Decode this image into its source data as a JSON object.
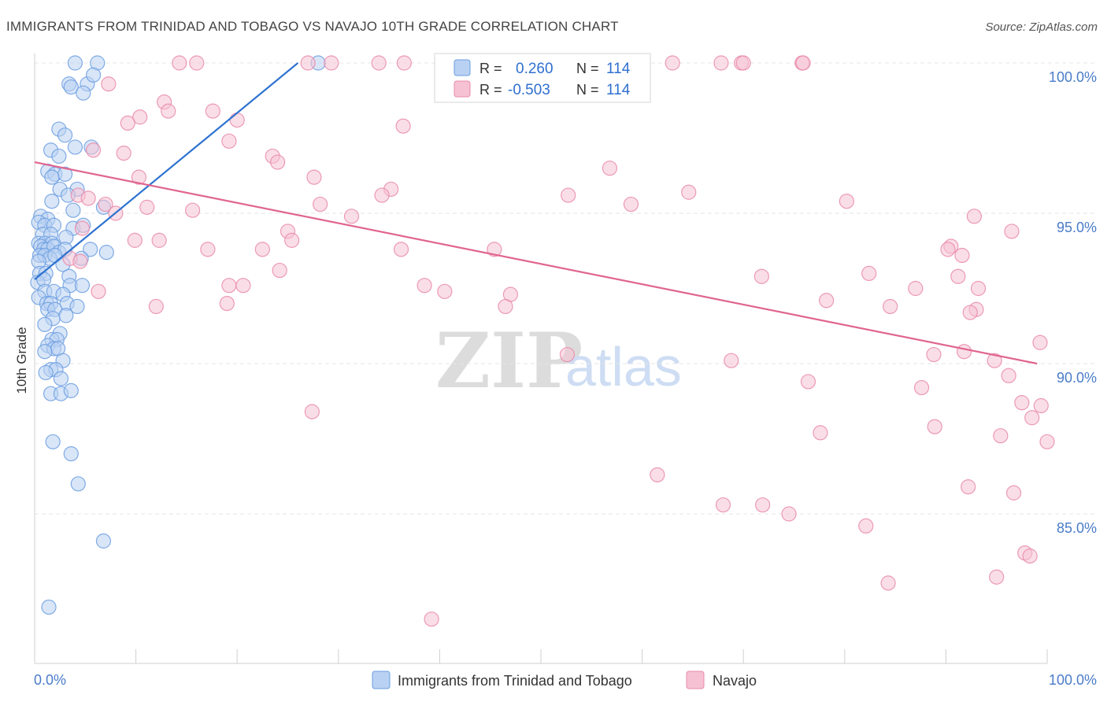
{
  "chart_data": {
    "type": "scatter",
    "title": "IMMIGRANTS FROM TRINIDAD AND TOBAGO VS NAVAJO 10TH GRADE CORRELATION CHART",
    "source": "Source: ZipAtlas.com",
    "ylabel": "10th Grade",
    "xlabel": "",
    "xlim": [
      0,
      100
    ],
    "ylim": [
      80.5,
      100.5
    ],
    "x_tick_labels": {
      "left": "0.0%",
      "right": "100.0%"
    },
    "y_ticks": [
      {
        "value": 100,
        "label": "100.0%"
      },
      {
        "value": 95,
        "label": "95.0%"
      },
      {
        "value": 90,
        "label": "90.0%"
      },
      {
        "value": 85,
        "label": "85.0%"
      }
    ],
    "grid": true,
    "watermark": {
      "zip": "ZIP",
      "atlas": "atlas"
    },
    "legend_top": {
      "placement": "top-center",
      "rows": [
        {
          "r_label": "R =",
          "r_value": "0.260",
          "n_label": "N =",
          "n_value": "114"
        },
        {
          "r_label": "R =",
          "r_value": "-0.503",
          "n_label": "N =",
          "n_value": "114"
        }
      ]
    },
    "series": [
      {
        "name": "Immigrants from Trinidad and Tobago",
        "color": "#6b9ee0",
        "fill": "#b9d1f3",
        "line_color": "#2e73d0",
        "trend": {
          "x": [
            0.0,
            26.0
          ],
          "y": [
            92.8,
            100.0
          ]
        },
        "points": [
          [
            4.0,
            100.0
          ],
          [
            6.2,
            100.0
          ],
          [
            28.0,
            100.0
          ],
          [
            5.2,
            99.3
          ],
          [
            5.8,
            99.6
          ],
          [
            3.4,
            99.3
          ],
          [
            3.6,
            99.2
          ],
          [
            4.8,
            99.0
          ],
          [
            2.4,
            97.8
          ],
          [
            3.0,
            97.6
          ],
          [
            4.0,
            97.2
          ],
          [
            1.6,
            97.1
          ],
          [
            2.4,
            96.9
          ],
          [
            5.6,
            97.2
          ],
          [
            1.3,
            96.4
          ],
          [
            2.0,
            96.3
          ],
          [
            3.0,
            96.3
          ],
          [
            1.7,
            96.2
          ],
          [
            2.5,
            95.8
          ],
          [
            4.2,
            95.8
          ],
          [
            1.7,
            95.4
          ],
          [
            3.3,
            95.6
          ],
          [
            3.8,
            95.1
          ],
          [
            6.8,
            95.2
          ],
          [
            0.6,
            94.9
          ],
          [
            1.3,
            94.8
          ],
          [
            0.4,
            94.7
          ],
          [
            1.0,
            94.6
          ],
          [
            1.9,
            94.6
          ],
          [
            3.8,
            94.5
          ],
          [
            4.8,
            94.6
          ],
          [
            0.8,
            94.3
          ],
          [
            1.6,
            94.3
          ],
          [
            3.1,
            94.2
          ],
          [
            0.4,
            94.0
          ],
          [
            1.0,
            94.0
          ],
          [
            1.7,
            94.0
          ],
          [
            0.6,
            93.9
          ],
          [
            0.9,
            93.8
          ],
          [
            1.3,
            93.8
          ],
          [
            1.9,
            93.9
          ],
          [
            2.4,
            93.7
          ],
          [
            3.0,
            93.8
          ],
          [
            5.5,
            93.8
          ],
          [
            7.1,
            93.7
          ],
          [
            0.5,
            93.6
          ],
          [
            1.0,
            93.6
          ],
          [
            1.5,
            93.5
          ],
          [
            2.0,
            93.6
          ],
          [
            0.4,
            93.4
          ],
          [
            2.8,
            93.3
          ],
          [
            4.6,
            93.5
          ],
          [
            0.5,
            93.0
          ],
          [
            1.1,
            93.0
          ],
          [
            3.4,
            92.9
          ],
          [
            0.3,
            92.7
          ],
          [
            0.9,
            92.8
          ],
          [
            3.5,
            92.6
          ],
          [
            4.7,
            92.6
          ],
          [
            1.0,
            92.4
          ],
          [
            1.9,
            92.4
          ],
          [
            0.4,
            92.2
          ],
          [
            2.8,
            92.3
          ],
          [
            1.2,
            92.0
          ],
          [
            1.6,
            92.0
          ],
          [
            3.2,
            92.0
          ],
          [
            4.2,
            91.9
          ],
          [
            1.3,
            91.8
          ],
          [
            2.0,
            91.8
          ],
          [
            3.1,
            91.6
          ],
          [
            1.8,
            91.5
          ],
          [
            1.0,
            91.3
          ],
          [
            2.5,
            91.0
          ],
          [
            1.7,
            90.8
          ],
          [
            2.2,
            90.8
          ],
          [
            1.3,
            90.6
          ],
          [
            1.9,
            90.5
          ],
          [
            2.3,
            90.5
          ],
          [
            1.0,
            90.4
          ],
          [
            2.8,
            90.1
          ],
          [
            1.6,
            89.8
          ],
          [
            2.1,
            89.8
          ],
          [
            1.1,
            89.7
          ],
          [
            2.6,
            89.5
          ],
          [
            1.6,
            89.0
          ],
          [
            2.6,
            89.0
          ],
          [
            3.6,
            89.1
          ],
          [
            1.8,
            87.4
          ],
          [
            3.6,
            87.0
          ],
          [
            4.3,
            86.0
          ],
          [
            6.8,
            84.1
          ],
          [
            1.4,
            81.9
          ]
        ]
      },
      {
        "name": "Navajo",
        "color": "#e98aaa",
        "fill": "#f6c2d3",
        "line_color": "#e0658f",
        "trend": {
          "x": [
            0.0,
            99.0
          ],
          "y": [
            96.7,
            90.0
          ]
        },
        "points": [
          [
            14.3,
            100.0
          ],
          [
            16.0,
            100.0
          ],
          [
            27.0,
            100.0
          ],
          [
            29.3,
            100.0
          ],
          [
            34.0,
            100.0
          ],
          [
            36.5,
            100.0
          ],
          [
            52.2,
            100.0
          ],
          [
            56.5,
            100.0
          ],
          [
            58.0,
            100.0
          ],
          [
            60.0,
            100.0
          ],
          [
            63.0,
            100.0
          ],
          [
            67.8,
            100.0
          ],
          [
            69.8,
            100.0
          ],
          [
            70.0,
            100.0
          ],
          [
            75.8,
            100.0
          ],
          [
            75.9,
            100.0
          ],
          [
            7.3,
            99.3
          ],
          [
            12.8,
            98.7
          ],
          [
            10.4,
            98.2
          ],
          [
            9.2,
            98.0
          ],
          [
            13.2,
            98.4
          ],
          [
            17.6,
            98.4
          ],
          [
            20.0,
            98.1
          ],
          [
            36.4,
            97.9
          ],
          [
            19.2,
            97.4
          ],
          [
            5.8,
            97.1
          ],
          [
            8.8,
            97.0
          ],
          [
            23.5,
            96.9
          ],
          [
            24.0,
            96.7
          ],
          [
            56.8,
            96.5
          ],
          [
            10.3,
            96.2
          ],
          [
            27.6,
            96.2
          ],
          [
            35.2,
            95.8
          ],
          [
            34.3,
            95.6
          ],
          [
            52.7,
            95.6
          ],
          [
            64.6,
            95.7
          ],
          [
            80.2,
            95.4
          ],
          [
            4.3,
            95.6
          ],
          [
            5.3,
            95.5
          ],
          [
            7.0,
            95.3
          ],
          [
            11.1,
            95.2
          ],
          [
            15.6,
            95.1
          ],
          [
            28.2,
            95.3
          ],
          [
            58.9,
            95.3
          ],
          [
            8.0,
            95.0
          ],
          [
            31.3,
            94.9
          ],
          [
            92.8,
            94.9
          ],
          [
            4.7,
            94.5
          ],
          [
            25.0,
            94.4
          ],
          [
            96.5,
            94.4
          ],
          [
            9.9,
            94.1
          ],
          [
            12.3,
            94.1
          ],
          [
            25.4,
            94.1
          ],
          [
            17.1,
            93.8
          ],
          [
            22.5,
            93.8
          ],
          [
            36.2,
            93.8
          ],
          [
            45.4,
            93.8
          ],
          [
            90.5,
            93.9
          ],
          [
            90.2,
            93.8
          ],
          [
            91.6,
            93.6
          ],
          [
            3.5,
            93.5
          ],
          [
            4.5,
            93.4
          ],
          [
            24.2,
            93.1
          ],
          [
            82.4,
            93.0
          ],
          [
            91.2,
            92.9
          ],
          [
            71.8,
            92.9
          ],
          [
            19.2,
            92.6
          ],
          [
            20.6,
            92.6
          ],
          [
            38.5,
            92.6
          ],
          [
            40.5,
            92.4
          ],
          [
            6.3,
            92.4
          ],
          [
            47.0,
            92.3
          ],
          [
            93.2,
            92.5
          ],
          [
            87.0,
            92.5
          ],
          [
            78.2,
            92.1
          ],
          [
            46.5,
            91.9
          ],
          [
            12.0,
            91.9
          ],
          [
            19.0,
            92.0
          ],
          [
            84.5,
            91.9
          ],
          [
            93.0,
            91.8
          ],
          [
            92.4,
            91.7
          ],
          [
            52.6,
            90.3
          ],
          [
            68.8,
            90.1
          ],
          [
            88.8,
            90.3
          ],
          [
            91.8,
            90.4
          ],
          [
            94.8,
            90.1
          ],
          [
            99.3,
            90.7
          ],
          [
            76.4,
            89.4
          ],
          [
            87.6,
            89.2
          ],
          [
            96.2,
            89.6
          ],
          [
            27.4,
            88.4
          ],
          [
            97.5,
            88.7
          ],
          [
            99.4,
            88.6
          ],
          [
            98.5,
            88.2
          ],
          [
            77.6,
            87.7
          ],
          [
            88.9,
            87.9
          ],
          [
            95.4,
            87.6
          ],
          [
            100.0,
            87.4
          ],
          [
            61.5,
            86.3
          ],
          [
            92.2,
            85.9
          ],
          [
            96.7,
            85.7
          ],
          [
            68.0,
            85.3
          ],
          [
            71.9,
            85.3
          ],
          [
            74.5,
            85.0
          ],
          [
            82.1,
            84.6
          ],
          [
            97.8,
            83.7
          ],
          [
            98.3,
            83.6
          ],
          [
            84.3,
            82.7
          ],
          [
            95.0,
            82.9
          ],
          [
            39.2,
            81.5
          ]
        ]
      }
    ]
  }
}
